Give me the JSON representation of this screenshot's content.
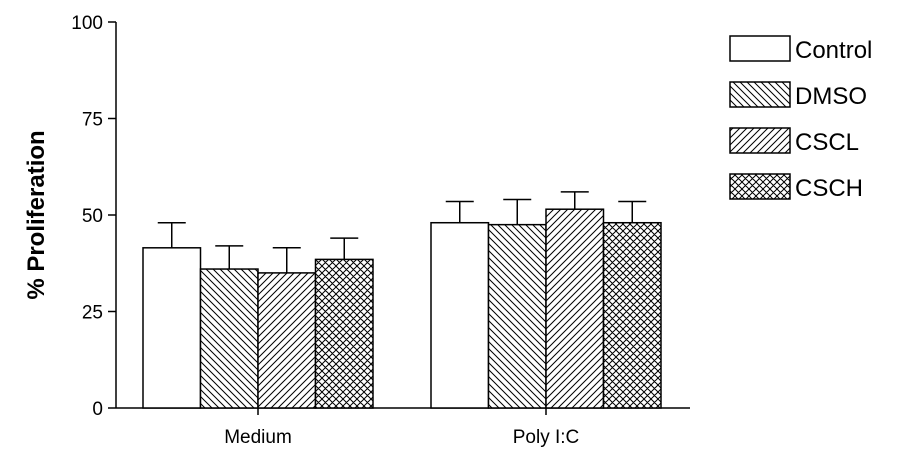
{
  "chart_data": {
    "type": "bar",
    "title": "",
    "xlabel": "",
    "ylabel": "% Proliferation",
    "ylim": [
      0,
      100
    ],
    "yticks": [
      0,
      25,
      50,
      75,
      100
    ],
    "categories": [
      "Medium",
      "Poly I:C"
    ],
    "series": [
      {
        "name": "Control",
        "pattern": "none",
        "values": [
          41.5,
          48.0
        ],
        "errors": [
          6.5,
          5.5
        ]
      },
      {
        "name": "DMSO",
        "pattern": "back-hatch",
        "values": [
          36.0,
          47.5
        ],
        "errors": [
          6.0,
          6.5
        ]
      },
      {
        "name": "CSCL",
        "pattern": "hatch",
        "values": [
          35.0,
          51.5
        ],
        "errors": [
          6.5,
          4.5
        ]
      },
      {
        "name": "CSCH",
        "pattern": "crosshatch",
        "values": [
          38.5,
          48.0
        ],
        "errors": [
          5.5,
          5.5
        ]
      }
    ],
    "legend_position": "right",
    "grid": false,
    "colors": {
      "bar_fill": "#ffffff",
      "line": "#000000"
    }
  }
}
